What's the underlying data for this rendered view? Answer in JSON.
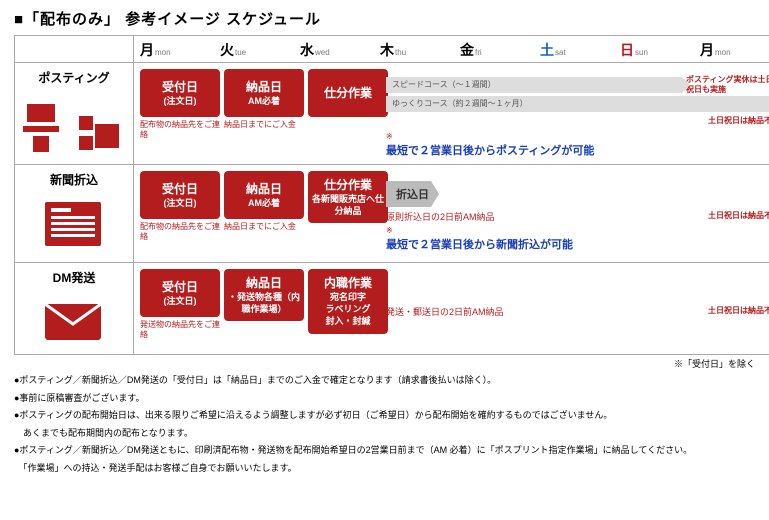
{
  "title": "■「配布のみ」 参考イメージ スケジュール",
  "days": [
    {
      "jp": "月",
      "en": "mon",
      "cls": ""
    },
    {
      "jp": "火",
      "en": "tue",
      "cls": ""
    },
    {
      "jp": "水",
      "en": "wed",
      "cls": ""
    },
    {
      "jp": "木",
      "en": "thu",
      "cls": ""
    },
    {
      "jp": "金",
      "en": "fri",
      "cls": ""
    },
    {
      "jp": "土",
      "en": "sat",
      "cls": "sat"
    },
    {
      "jp": "日",
      "en": "sun",
      "cls": "sun"
    },
    {
      "jp": "月",
      "en": "mon",
      "cls": ""
    }
  ],
  "rows": [
    {
      "name": "ポスティング",
      "boxes": [
        {
          "t1": "受付日",
          "t2": "(注文日)",
          "sub": "配布物の納品先をご連絡"
        },
        {
          "t1": "納品日",
          "t2": "AM必着",
          "sub": "納品日までにご入金"
        },
        {
          "t1": "仕分作業",
          "t2": "",
          "sub": ""
        }
      ],
      "arrows": [
        {
          "pill": "スピードコース（～１週間）",
          "side": "ポスティング実休は土日祝日も実施"
        },
        {
          "pill": "ゆっくりコース（約２週間～１ヶ月）",
          "side": ""
        }
      ],
      "red_note": "土日祝日は納品不可",
      "blue": "最短で２営業日後からポスティングが可能",
      "blue_ast": "※"
    },
    {
      "name": "新聞折込",
      "boxes": [
        {
          "t1": "受付日",
          "t2": "(注文日)",
          "sub": "配布物の納品先をご連絡"
        },
        {
          "t1": "納品日",
          "t2": "AM必着",
          "sub": "納品日までにご入金"
        },
        {
          "t1": "仕分作業",
          "t2": "各新聞販売店へ仕分納品",
          "sub": ""
        }
      ],
      "ori": "折込日",
      "mid_red": "原則折込日の2日前AM納品",
      "red_note": "土日祝日は納品不可",
      "blue": "最短で２営業日後から新聞折込が可能",
      "blue_ast": "※"
    },
    {
      "name": "DM発送",
      "boxes": [
        {
          "t1": "受付日",
          "t2": "(注文日)",
          "sub": "発送物の納品先をご連絡"
        },
        {
          "t1": "納品日",
          "t2": "・発送物各種（内職作業場）",
          "sub": ""
        },
        {
          "t1": "内職作業",
          "t2": "宛名印字\nラベリング\n封入・封緘",
          "sub": ""
        }
      ],
      "mid_red": "発送・郵送日の2日前AM納品",
      "red_note": "土日祝日は納品不可"
    }
  ],
  "footer_right": "※「受付日」を除く",
  "footnotes": [
    "●ポスティング／新聞折込／DM発送の「受付日」は「納品日」までのご入金で確定となります（請求書後払いは除く）。",
    "●事前に原稿審査がございます。",
    "●ポスティングの配布開始日は、出来る限りご希望に沿えるよう調整しますが必ず初日（ご希望日）から配布開始を確約するものではございません。",
    "　あくまでも配布期間内の配布となります。",
    "●ポスティング／新聞折込／DM発送ともに、印刷済配布物・発送物を配布開始希望日の2営業日前まで（AM 必着）に「ポスプリント指定作業場」に納品してください。",
    "　「作業場」への持込・発送手配はお客様ご自身でお願いいたします。"
  ]
}
